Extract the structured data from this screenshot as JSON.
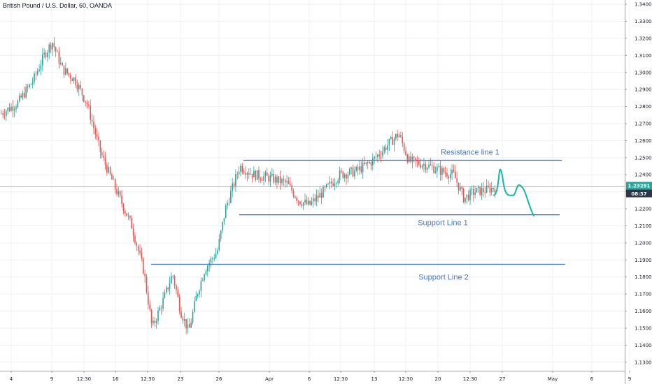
{
  "header": {
    "title": "British Pound / U.S. Dollar, 60, OANDA"
  },
  "colors": {
    "up": "#26a69a",
    "down": "#ef5350",
    "hline": "#2962ff",
    "projection": "#14b8a6",
    "price_line": "#26a69a",
    "badge_top": "#26a69a",
    "badge_bottom": "#2b3648",
    "annotation": "#4a78c2"
  },
  "chart_data": {
    "type": "candlestick",
    "title": "British Pound / U.S. Dollar, 60, OANDA",
    "ylim": [
      1.125,
      1.3425
    ],
    "y_ticks": [
      "1.13000",
      "1.14000",
      "1.15000",
      "1.16000",
      "1.17000",
      "1.18000",
      "1.19000",
      "1.20000",
      "1.21000",
      "1.22000",
      "1.23000",
      "1.24000",
      "1.25000",
      "1.26000",
      "1.27000",
      "1.28000",
      "1.29000",
      "1.30000",
      "1.31000",
      "1.32000",
      "1.33000",
      "1.34000"
    ],
    "x_ticks": [
      "4",
      "9",
      "12:30",
      "16",
      "12:30",
      "23",
      "26",
      "Apr",
      "6",
      "12:30",
      "13",
      "12:30",
      "20",
      "12:30",
      "27",
      "May",
      "6",
      "9"
    ],
    "price_path": [
      [
        0,
        1.276
      ],
      [
        0.04,
        1.282
      ],
      [
        0.08,
        1.296
      ],
      [
        0.105,
        1.31
      ],
      [
        0.125,
        1.318
      ],
      [
        0.15,
        1.302
      ],
      [
        0.18,
        1.296
      ],
      [
        0.21,
        1.282
      ],
      [
        0.245,
        1.252
      ],
      [
        0.28,
        1.232
      ],
      [
        0.32,
        1.21
      ],
      [
        0.35,
        1.183
      ],
      [
        0.37,
        1.15
      ],
      [
        0.4,
        1.168
      ],
      [
        0.42,
        1.182
      ],
      [
        0.44,
        1.16
      ],
      [
        0.46,
        1.148
      ],
      [
        0.48,
        1.17
      ],
      [
        0.5,
        1.185
      ],
      [
        0.53,
        1.195
      ],
      [
        0.55,
        1.22
      ],
      [
        0.585,
        1.245
      ],
      [
        0.62,
        1.24
      ],
      [
        0.66,
        1.238
      ],
      [
        0.7,
        1.235
      ],
      [
        0.73,
        1.225
      ],
      [
        0.755,
        1.222
      ],
      [
        0.79,
        1.23
      ],
      [
        0.83,
        1.24
      ],
      [
        0.87,
        1.242
      ],
      [
        0.91,
        1.248
      ],
      [
        0.95,
        1.258
      ],
      [
        0.975,
        1.264
      ],
      [
        1.0,
        1.248
      ],
      [
        1.04,
        1.246
      ],
      [
        1.08,
        1.242
      ],
      [
        1.11,
        1.24
      ],
      [
        1.135,
        1.226
      ],
      [
        1.16,
        1.23
      ],
      [
        1.19,
        1.231
      ],
      [
        1.215,
        1.233
      ]
    ],
    "horizontal_lines": [
      {
        "name": "Resistance line 1",
        "y": 1.2485
      },
      {
        "name": "Support Line 1",
        "y": 1.2165
      },
      {
        "name": "Support Line 2",
        "y": 1.1875
      }
    ],
    "projection_path": [
      [
        0,
        1.228
      ],
      [
        0.1,
        1.242
      ],
      [
        0.25,
        1.228
      ],
      [
        0.38,
        1.233
      ],
      [
        0.55,
        1.216
      ]
    ],
    "current_price": "1.23291",
    "current_price_value": 1.23291,
    "countdown": "08:37"
  }
}
